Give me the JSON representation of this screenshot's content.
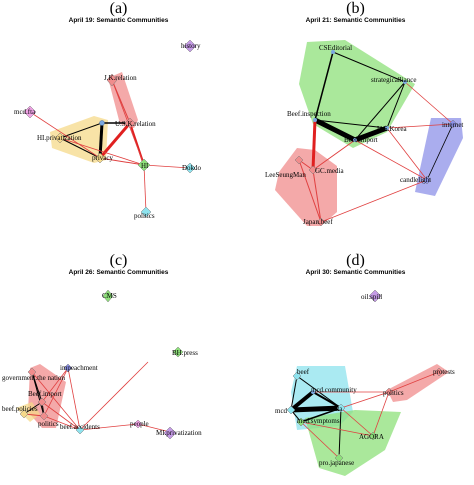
{
  "colors": {
    "yellow": "#f5d98a",
    "red": "#f08c8c",
    "green": "#8ee07a",
    "blue": "#8d92e8",
    "cyan": "#8ee3ee",
    "purple": "#c59be6",
    "pink": "#f0a3e6",
    "edge_red": "#e04040",
    "edge_black": "#000000",
    "node_fill": "#a3c8f0",
    "node_stroke": "#5a7fb0"
  },
  "panels": [
    {
      "letter": "(a)",
      "title": "April 19: Semantic Communities",
      "nodes": [
        {
          "id": "history",
          "label": "history",
          "color": "purple"
        },
        {
          "id": "jk",
          "label": "J.K.relation",
          "color": "red"
        },
        {
          "id": "mcd",
          "label": "mcd.fta",
          "color": "pink"
        },
        {
          "id": "uskr",
          "label": "U.S.K.relation",
          "color": "red"
        },
        {
          "id": "hipriv",
          "label": "HI.privatization",
          "color": "yellow"
        },
        {
          "id": "privacy",
          "label": "privacy",
          "color": "yellow"
        },
        {
          "id": "hi",
          "label": "HI",
          "color": "green"
        },
        {
          "id": "dokdo",
          "label": "Dokdo",
          "color": "cyan"
        },
        {
          "id": "politics",
          "label": "politics",
          "color": "cyan"
        }
      ]
    },
    {
      "letter": "(b)",
      "title": "April 21: Semantic Communities",
      "nodes": [
        {
          "id": "cse",
          "label": "CSEditorial",
          "color": "green"
        },
        {
          "id": "strat",
          "label": "strategicalliance",
          "color": "green"
        },
        {
          "id": "internet",
          "label": "internet",
          "color": "blue"
        },
        {
          "id": "beefinsp",
          "label": "Beef.inspection",
          "color": "green"
        },
        {
          "id": "uskorea",
          "label": "U.S.Korea",
          "color": "green"
        },
        {
          "id": "beefimp",
          "label": "Beef.import",
          "color": "green"
        },
        {
          "id": "lee",
          "label": "LeeSeungMan",
          "color": "red"
        },
        {
          "id": "gcmedia",
          "label": "GC.media",
          "color": "red"
        },
        {
          "id": "candle",
          "label": "candlelight",
          "color": "blue"
        },
        {
          "id": "japan",
          "label": "Japan.beef",
          "color": "red"
        }
      ]
    },
    {
      "letter": "(c)",
      "title": "April 26: Semantic Communities",
      "nodes": [
        {
          "id": "cms",
          "label": "CMS",
          "color": "green"
        },
        {
          "id": "bh",
          "label": "BH.press",
          "color": "green"
        },
        {
          "id": "impeach",
          "label": "impeachment",
          "color": "blue"
        },
        {
          "id": "gov",
          "label": "government.the nation",
          "color": "red"
        },
        {
          "id": "beefimp",
          "label": "Beef.import",
          "color": "red"
        },
        {
          "id": "beefpol",
          "label": "beef.policies",
          "color": "yellow"
        },
        {
          "id": "beefacc",
          "label": "beef.accidents",
          "color": "cyan"
        },
        {
          "id": "politics",
          "label": "politics",
          "color": "red"
        },
        {
          "id": "people",
          "label": "people",
          "color": "pink"
        },
        {
          "id": "mipriv",
          "label": "MI.privatization",
          "color": "purple"
        }
      ]
    },
    {
      "letter": "(d)",
      "title": "April 30: Semantic Communities",
      "nodes": [
        {
          "id": "oil",
          "label": "oil.spill",
          "color": "purple"
        },
        {
          "id": "beef",
          "label": "beef",
          "color": "cyan"
        },
        {
          "id": "mcdcomm",
          "label": "mcd.community",
          "color": "cyan"
        },
        {
          "id": "protests",
          "label": "protests",
          "color": "red"
        },
        {
          "id": "politics",
          "label": "politics",
          "color": "red"
        },
        {
          "id": "mcd",
          "label": "mcd",
          "color": "cyan"
        },
        {
          "id": "fta",
          "label": "fta",
          "color": "cyan"
        },
        {
          "id": "mcdsym",
          "label": "mcd.symptoms",
          "color": "green"
        },
        {
          "id": "agora",
          "label": "AGORA",
          "color": "green"
        },
        {
          "id": "projap",
          "label": "pro.japanese",
          "color": "green"
        }
      ]
    }
  ]
}
